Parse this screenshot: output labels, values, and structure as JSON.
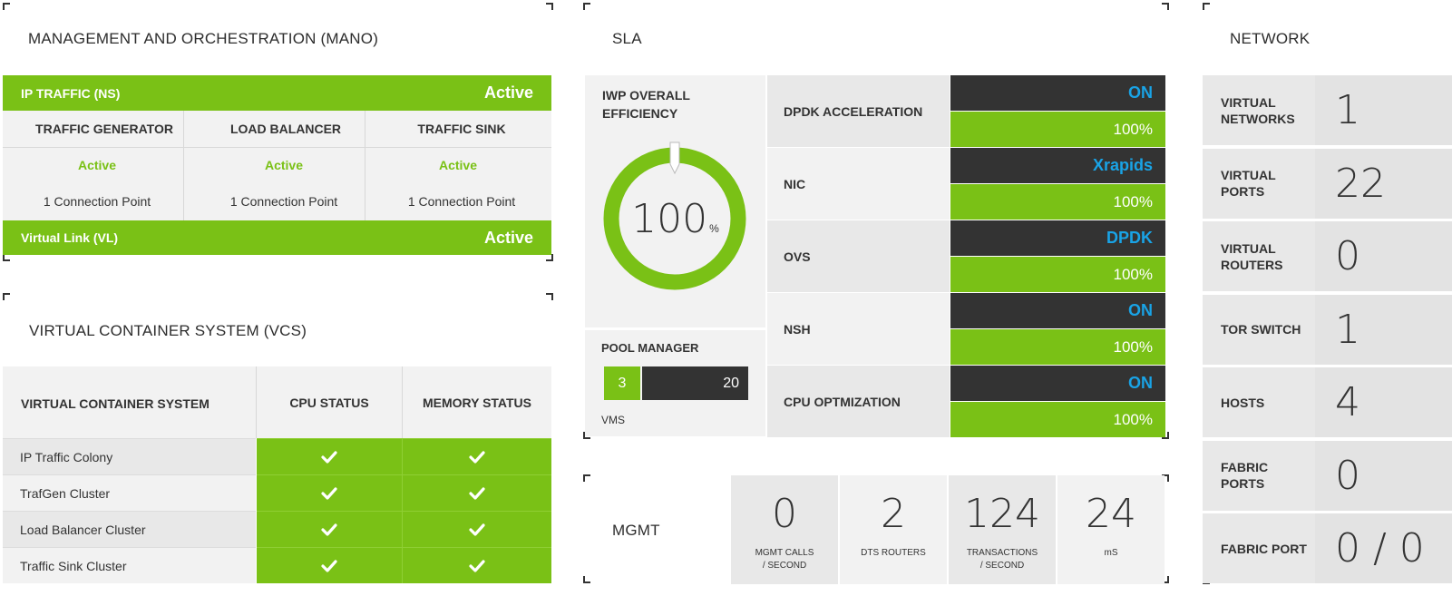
{
  "mano": {
    "title": "MANAGEMENT AND ORCHESTRATION (MANO)",
    "ip_traffic_label": "IP TRAFFIC (NS)",
    "ip_traffic_status": "Active",
    "columns": [
      {
        "name": "TRAFFIC GENERATOR",
        "status": "Active",
        "detail": "1 Connection Point"
      },
      {
        "name": "LOAD BALANCER",
        "status": "Active",
        "detail": "1 Connection Point"
      },
      {
        "name": "TRAFFIC SINK",
        "status": "Active",
        "detail": "1 Connection Point"
      }
    ],
    "virtual_link_label": "Virtual Link (VL)",
    "virtual_link_status": "Active"
  },
  "vcs": {
    "title": "VIRTUAL CONTAINER SYSTEM (VCS)",
    "headers": [
      "VIRTUAL CONTAINER SYSTEM",
      "CPU STATUS",
      "MEMORY STATUS"
    ],
    "rows": [
      "IP Traffic Colony",
      "TrafGen Cluster",
      "Load Balancer Cluster",
      "Traffic Sink Cluster"
    ],
    "status_icon": "check-icon"
  },
  "sla": {
    "title": "SLA",
    "efficiency_label": "IWP OVERALL EFFICIENCY",
    "efficiency_value": "100",
    "efficiency_unit": "%",
    "efficiency_fraction": 1.0,
    "pool_manager_label": "POOL MANAGER",
    "pool_used": "3",
    "pool_total": "20",
    "pool_unit": "VMS",
    "rows": [
      {
        "label": "DPDK ACCELERATION",
        "state": "ON",
        "percent": "100%"
      },
      {
        "label": "NIC",
        "state": "Xrapids",
        "percent": "100%"
      },
      {
        "label": "OVS",
        "state": "DPDK",
        "percent": "100%"
      },
      {
        "label": "NSH",
        "state": "ON",
        "percent": "100%"
      },
      {
        "label": "CPU OPTMIZATION",
        "state": "ON",
        "percent": "100%"
      }
    ]
  },
  "mgmt": {
    "title": "MGMT",
    "stats": [
      {
        "value": "0",
        "label_line1": "MGMT CALLS",
        "label_line2": "/ SECOND"
      },
      {
        "value": "2",
        "label_line1": "DTS ROUTERS",
        "label_line2": ""
      },
      {
        "value": "124",
        "label_line1": "TRANSACTIONS",
        "label_line2": "/ SECOND"
      },
      {
        "value": "24",
        "label_line1": "mS",
        "label_line2": ""
      }
    ]
  },
  "network": {
    "title": "NETWORK",
    "rows": [
      {
        "label_line1": "VIRTUAL",
        "label_line2": "NETWORKS",
        "value": "1"
      },
      {
        "label_line1": "VIRTUAL",
        "label_line2": "PORTS",
        "value": "22"
      },
      {
        "label_line1": "VIRTUAL",
        "label_line2": "ROUTERS",
        "value": "0"
      },
      {
        "label_line1": "TOR SWITCH",
        "label_line2": "",
        "value": "1"
      },
      {
        "label_line1": "HOSTS",
        "label_line2": "",
        "value": "4"
      },
      {
        "label_line1": "FABRIC PORTS",
        "label_line2": "",
        "value": "0"
      },
      {
        "label_line1": "FABRIC PORT",
        "label_line2": "",
        "value": "0 / 0"
      }
    ]
  },
  "colors": {
    "accent_green": "#7ac116",
    "dark": "#333333",
    "status_blue": "#19a3e6"
  }
}
